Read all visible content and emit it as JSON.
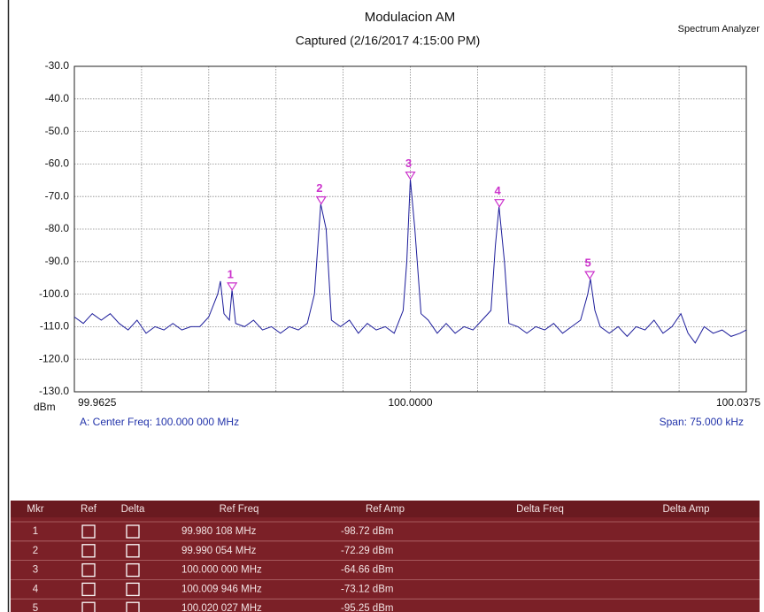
{
  "header": {
    "app": "Spectrum Analyzer"
  },
  "chart_data": {
    "type": "line",
    "title": "Modulacion AM",
    "subtitle": "Captured (2/16/2017 4:15:00 PM)",
    "y_unit": "dBm",
    "center_freq": "A: Center Freq: 100.000 000 MHz",
    "span": "Span: 75.000 kHz",
    "color": "#1c1c9a",
    "marker_color": "#cc33cc",
    "grid": true,
    "ylim": [
      -130,
      -30
    ],
    "yticks": [
      {
        "value": -30,
        "label": "-30.0"
      },
      {
        "value": -40,
        "label": "-40.0"
      },
      {
        "value": -50,
        "label": "-50.0"
      },
      {
        "value": -60,
        "label": "-60.0"
      },
      {
        "value": -70,
        "label": "-70.0"
      },
      {
        "value": -80,
        "label": "-80.0"
      },
      {
        "value": -90,
        "label": "-90.0"
      },
      {
        "value": -100,
        "label": "-100.0"
      },
      {
        "value": -110,
        "label": "-110.0"
      },
      {
        "value": -120,
        "label": "-120.0"
      },
      {
        "value": -130,
        "label": "-130.0"
      }
    ],
    "xlim": [
      99.9625,
      100.0375
    ],
    "xticks": [
      99.9625,
      {
        "value": 100,
        "label": "100.0000"
      },
      100.0375
    ],
    "xgrid": [
      99.9625,
      99.97,
      99.9775,
      99.985,
      99.9925,
      100,
      100.0075,
      100.015,
      100.0225,
      100.03,
      100.0375
    ],
    "x": [
      99.9625,
      99.9635,
      99.9645,
      99.9655,
      99.9665,
      99.9675,
      99.9685,
      99.9695,
      99.9705,
      99.9715,
      99.9725,
      99.9735,
      99.9745,
      99.9755,
      99.9765,
      99.9775,
      99.9785,
      99.9788,
      99.9792,
      99.9798,
      99.9801,
      99.9805,
      99.9815,
      99.9825,
      99.9835,
      99.9845,
      99.9855,
      99.9865,
      99.9875,
      99.9885,
      99.9893,
      99.99,
      99.9906,
      99.9912,
      99.9922,
      99.9932,
      99.9942,
      99.9952,
      99.9962,
      99.9972,
      99.9982,
      99.9992,
      99.9996,
      100.0,
      100.0005,
      100.0012,
      100.002,
      100.003,
      100.004,
      100.005,
      100.006,
      100.007,
      100.008,
      100.009,
      100.0095,
      100.0099,
      100.0105,
      100.011,
      100.012,
      100.013,
      100.014,
      100.015,
      100.016,
      100.017,
      100.018,
      100.019,
      100.0198,
      100.0201,
      100.0206,
      100.0212,
      100.0222,
      100.0232,
      100.0242,
      100.0252,
      100.0262,
      100.0272,
      100.0282,
      100.0292,
      100.0302,
      100.031,
      100.0318,
      100.0328,
      100.0338,
      100.0348,
      100.0358,
      100.0368,
      100.0375
    ],
    "values": [
      -107,
      -109,
      -106,
      -108,
      -106,
      -109,
      -111,
      -108,
      -112,
      -110,
      -111,
      -109,
      -111,
      -110,
      -110,
      -107,
      -100,
      -96,
      -106,
      -108,
      -98.7,
      -109,
      -110,
      -108,
      -111,
      -110,
      -112,
      -110,
      -111,
      -109,
      -100,
      -72.3,
      -80,
      -108,
      -110,
      -108,
      -112,
      -109,
      -111,
      -110,
      -112,
      -105,
      -90,
      -64.7,
      -80,
      -106,
      -108,
      -112,
      -109,
      -112,
      -110,
      -111,
      -108,
      -105,
      -85,
      -73.1,
      -90,
      -109,
      -110,
      -112,
      -110,
      -111,
      -109,
      -112,
      -110,
      -108,
      -100,
      -95.3,
      -105,
      -110,
      -112,
      -110,
      -113,
      -110,
      -111,
      -108,
      -112,
      -110,
      -106,
      -112,
      -115,
      -110,
      -112,
      -111,
      -113,
      -112,
      -111
    ],
    "markers": [
      {
        "label": "1",
        "x": 99.980108,
        "y": -98.72
      },
      {
        "label": "2",
        "x": 99.990054,
        "y": -72.29
      },
      {
        "label": "3",
        "x": 100.0,
        "y": -64.66
      },
      {
        "label": "4",
        "x": 100.009946,
        "y": -73.12
      },
      {
        "label": "5",
        "x": 100.020027,
        "y": -95.25
      }
    ]
  },
  "table": {
    "columns": [
      "Mkr",
      "Ref",
      "Delta",
      "Ref Freq",
      "Ref Amp",
      "Delta Freq",
      "Delta Amp"
    ],
    "rows": [
      [
        "1",
        "99.980 108 MHz",
        "-98.72 dBm"
      ],
      [
        "2",
        "99.990 054 MHz",
        "-72.29 dBm"
      ],
      [
        "3",
        "100.000 000 MHz",
        "-64.66 dBm"
      ],
      [
        "4",
        "100.009 946 MHz",
        "-73.12 dBm"
      ],
      [
        "5",
        "100.020 027 MHz",
        "-95.25 dBm"
      ]
    ]
  }
}
